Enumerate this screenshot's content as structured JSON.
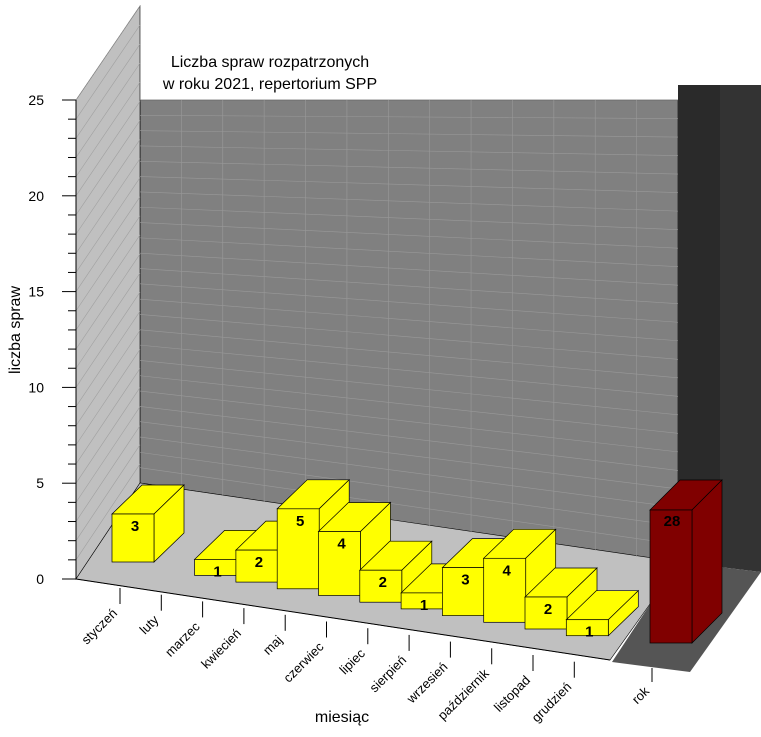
{
  "chart_data": {
    "type": "bar",
    "title": "Liczba spraw rozpatrzonych\nw roku 2021, repertorium SPP",
    "title_lines": [
      "Liczba spraw rozpatrzonych",
      "w roku 2021, repertorium SPP"
    ],
    "xlabel": "miesiąc",
    "ylabel": "liczba spraw",
    "ylim": [
      0,
      25
    ],
    "yticks": [
      "0",
      "5",
      "10",
      "15",
      "20",
      "25"
    ],
    "grid": true,
    "categories": [
      "styczeń",
      "luty",
      "marzec",
      "kwiecień",
      "maj",
      "czerwiec",
      "lipiec",
      "sierpień",
      "wrzesień",
      "październik",
      "listopad",
      "grudzień"
    ],
    "values": [
      3,
      null,
      1,
      2,
      5,
      4,
      2,
      1,
      3,
      4,
      2,
      1
    ],
    "value_labels": [
      "3",
      "",
      "1",
      "2",
      "5",
      "4",
      "2",
      "1",
      "3",
      "4",
      "2",
      "1"
    ],
    "total": {
      "category": "rok",
      "value": 28,
      "label": "28"
    },
    "colors": {
      "bar_front": "#ffff00",
      "bar_side": "#ffff00",
      "bar_top": "#ffff00",
      "total_front": "#800000",
      "total_side": "#800000",
      "total_top": "#800000",
      "back_wall": "#808080",
      "side_wall": "#c0c0c0",
      "floor": "#c0c0c0",
      "total_panel_back": "#333333",
      "total_panel_floor": "#555555"
    }
  }
}
